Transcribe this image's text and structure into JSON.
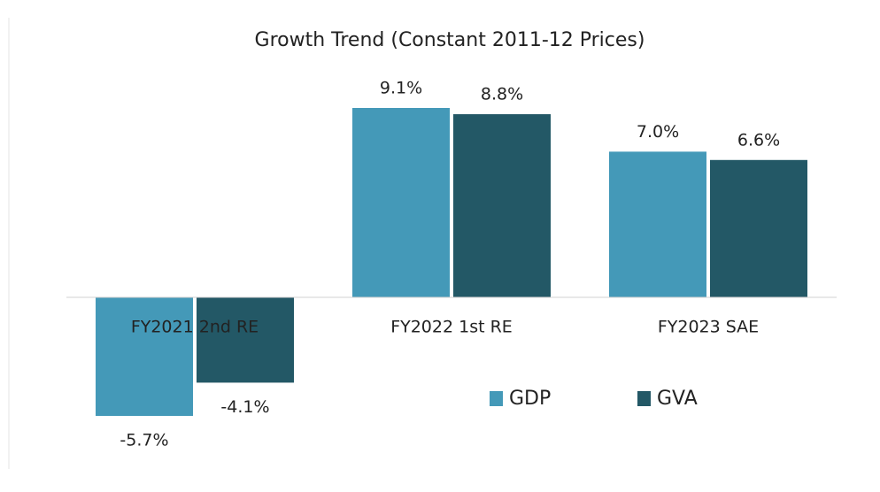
{
  "chart_data": {
    "type": "bar",
    "title": "Growth Trend (Constant 2011-12 Prices)",
    "categories": [
      "FY2021 2nd RE",
      "FY2022 1st RE",
      "FY2023 SAE"
    ],
    "series": [
      {
        "name": "GDP",
        "color": "#4499b8",
        "values": [
          -5.7,
          9.1,
          7.0
        ],
        "value_labels": [
          "-5.7%",
          "9.1%",
          "7.0%"
        ]
      },
      {
        "name": "GVA",
        "color": "#235866",
        "values": [
          -4.1,
          8.8,
          6.6
        ],
        "value_labels": [
          "-4.1%",
          "8.8%",
          "6.6%"
        ]
      }
    ],
    "legend": "bottom-right"
  }
}
